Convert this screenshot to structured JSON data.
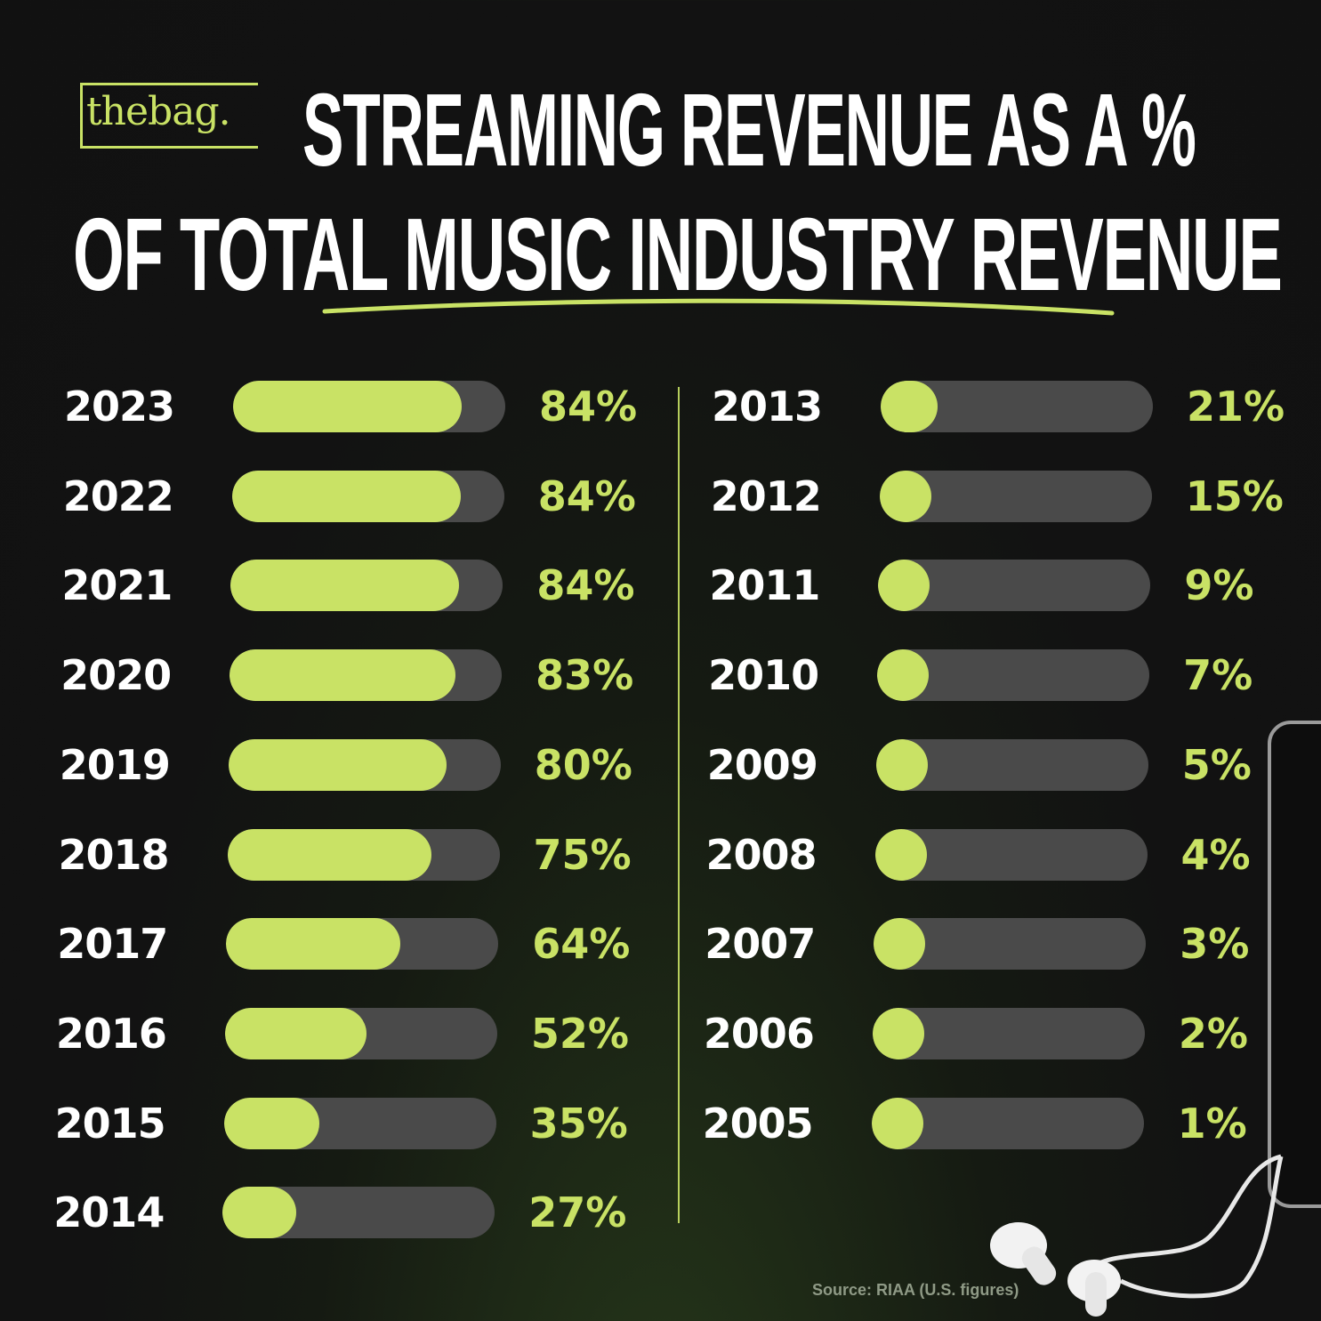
{
  "logo": {
    "text": "thebag."
  },
  "title": {
    "line1": "STREAMING REVENUE AS A %",
    "line2": "OF TOTAL MUSIC INDUSTRY REVENUE"
  },
  "source": "Source: RIAA (U.S. figures)",
  "colors": {
    "accent": "#c9e265",
    "track": "#4a4a4a",
    "background": "#121212"
  },
  "chart_data": {
    "type": "bar",
    "ylim": [
      0,
      100
    ],
    "left_column": [
      {
        "year": "2023",
        "value": 84,
        "label": "84%"
      },
      {
        "year": "2022",
        "value": 84,
        "label": "84%"
      },
      {
        "year": "2021",
        "value": 84,
        "label": "84%"
      },
      {
        "year": "2020",
        "value": 83,
        "label": "83%"
      },
      {
        "year": "2019",
        "value": 80,
        "label": "80%"
      },
      {
        "year": "2018",
        "value": 75,
        "label": "75%"
      },
      {
        "year": "2017",
        "value": 64,
        "label": "64%"
      },
      {
        "year": "2016",
        "value": 52,
        "label": "52%"
      },
      {
        "year": "2015",
        "value": 35,
        "label": "35%"
      },
      {
        "year": "2014",
        "value": 27,
        "label": "27%"
      }
    ],
    "right_column": [
      {
        "year": "2013",
        "value": 21,
        "label": "21%"
      },
      {
        "year": "2012",
        "value": 15,
        "label": "15%"
      },
      {
        "year": "2011",
        "value": 9,
        "label": "9%"
      },
      {
        "year": "2010",
        "value": 7,
        "label": "7%"
      },
      {
        "year": "2009",
        "value": 5,
        "label": "5%"
      },
      {
        "year": "2008",
        "value": 4,
        "label": "4%"
      },
      {
        "year": "2007",
        "value": 3,
        "label": "3%"
      },
      {
        "year": "2006",
        "value": 2,
        "label": "2%"
      },
      {
        "year": "2005",
        "value": 1,
        "label": "1%"
      }
    ]
  }
}
